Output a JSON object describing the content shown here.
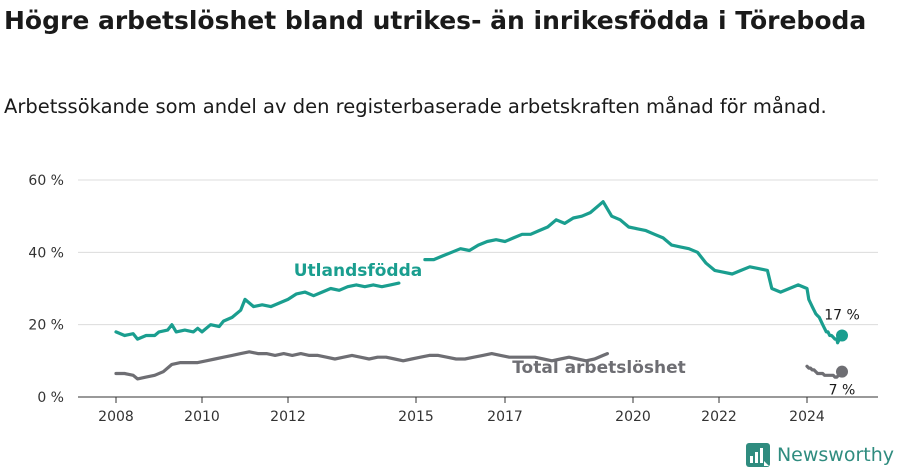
{
  "title": "Högre arbetslöshet bland utrikes- än inrikesfödda i Töreboda",
  "subtitle": "Arbetssökande som andel av den registerbaserade arbetskraften månad för månad.",
  "brand": {
    "name": "Newsworthy"
  },
  "colors": {
    "foreign": "#1a9e8f",
    "total": "#6e6e73",
    "grid": "#dcdcdc",
    "axis": "#333333"
  },
  "chart_data": {
    "type": "line",
    "title": "Högre arbetslöshet bland utrikes- än inrikesfödda i Töreboda",
    "ylabel": "",
    "xlabel": "",
    "ylim": [
      0,
      60
    ],
    "y_ticks": [
      0,
      20,
      40,
      60
    ],
    "y_tick_labels": [
      "0 %",
      "20 %",
      "40 %",
      "60 %"
    ],
    "x_range": [
      2007.5,
      2025.5
    ],
    "x_ticks": [
      2008,
      2010,
      2012,
      2015,
      2017,
      2020,
      2022,
      2024
    ],
    "x_tick_labels": [
      "2008",
      "2010",
      "2012",
      "2015",
      "2017",
      "2020",
      "2022",
      "2024"
    ],
    "grid": true,
    "series": [
      {
        "name": "Utlandsfödda",
        "color": "#1a9e8f",
        "end_label": "17 %",
        "points": [
          [
            2008.0,
            18
          ],
          [
            2008.2,
            17
          ],
          [
            2008.4,
            17.5
          ],
          [
            2008.5,
            16
          ],
          [
            2008.7,
            17
          ],
          [
            2008.9,
            17
          ],
          [
            2009.0,
            18
          ],
          [
            2009.2,
            18.5
          ],
          [
            2009.3,
            20
          ],
          [
            2009.4,
            18
          ],
          [
            2009.6,
            18.5
          ],
          [
            2009.8,
            18
          ],
          [
            2009.9,
            19
          ],
          [
            2010.0,
            18
          ],
          [
            2010.2,
            20
          ],
          [
            2010.4,
            19.5
          ],
          [
            2010.5,
            21
          ],
          [
            2010.7,
            22
          ],
          [
            2010.9,
            24
          ],
          [
            2011.0,
            27
          ],
          [
            2011.2,
            25
          ],
          [
            2011.4,
            25.5
          ],
          [
            2011.6,
            25
          ],
          [
            2011.8,
            26
          ],
          [
            2012.0,
            27
          ],
          [
            2012.2,
            28.5
          ],
          [
            2012.4,
            29
          ],
          [
            2012.6,
            28
          ],
          [
            2012.8,
            29
          ],
          [
            2013.0,
            30
          ],
          [
            2013.2,
            29.5
          ],
          [
            2013.4,
            30.5
          ],
          [
            2013.6,
            31
          ],
          [
            2013.8,
            30.5
          ],
          [
            2014.0,
            31
          ],
          [
            2014.2,
            30.5
          ],
          [
            2014.4,
            31
          ],
          [
            2014.6,
            31.5
          ],
          null,
          [
            2015.2,
            38
          ],
          [
            2015.4,
            38
          ],
          [
            2015.6,
            39
          ],
          [
            2015.8,
            40
          ],
          [
            2016.0,
            41
          ],
          [
            2016.2,
            40.5
          ],
          [
            2016.4,
            42
          ],
          [
            2016.6,
            43
          ],
          [
            2016.8,
            43.5
          ],
          [
            2017.0,
            43
          ],
          [
            2017.2,
            44
          ],
          [
            2017.4,
            45
          ],
          [
            2017.6,
            45
          ],
          [
            2017.8,
            46
          ],
          [
            2018.0,
            47
          ],
          [
            2018.2,
            49
          ],
          [
            2018.4,
            48
          ],
          [
            2018.6,
            49.5
          ],
          [
            2018.8,
            50
          ],
          [
            2019.0,
            51
          ],
          [
            2019.2,
            53
          ],
          [
            2019.3,
            54
          ],
          [
            2019.5,
            50
          ],
          [
            2019.7,
            49
          ],
          [
            2019.9,
            47
          ],
          [
            2020.1,
            46.5
          ],
          [
            2020.3,
            46
          ],
          [
            2020.5,
            45
          ],
          [
            2020.7,
            44
          ],
          [
            2020.9,
            42
          ],
          [
            2021.1,
            41.5
          ],
          [
            2021.3,
            41
          ],
          [
            2021.5,
            40
          ],
          [
            2021.7,
            37
          ],
          [
            2021.9,
            35
          ],
          [
            2022.1,
            34.5
          ],
          [
            2022.3,
            34
          ],
          [
            2022.5,
            35
          ],
          [
            2022.7,
            36
          ],
          [
            2022.9,
            35.5
          ],
          [
            2023.1,
            35
          ],
          [
            2023.2,
            30
          ],
          [
            2023.4,
            29
          ],
          [
            2023.6,
            30
          ],
          [
            2023.8,
            31
          ],
          [
            2024.0,
            30
          ],
          [
            2024.2,
            27
          ],
          [
            2024.4,
            26
          ],
          [
            2024.6,
            25
          ],
          [
            2024.8,
            24
          ],
          [
            2025.0,
            23
          ],
          [
            2025.2,
            22.5
          ],
          [
            2025.4,
            22
          ],
          [
            2025.6,
            21
          ],
          [
            2025.8,
            20
          ],
          [
            2026.0,
            19
          ],
          [
            2026.2,
            18
          ],
          [
            2026.4,
            18
          ],
          [
            2026.6,
            17
          ],
          [
            2026.8,
            17
          ],
          [
            2027.0,
            16.5
          ],
          [
            2027.2,
            16
          ],
          [
            2027.4,
            16
          ],
          [
            2027.5,
            15
          ],
          [
            2027.7,
            16
          ],
          [
            2027.9,
            16
          ],
          [
            2028.0,
            17
          ]
        ]
      },
      {
        "name": "Total arbetslöshet",
        "color": "#6e6e73",
        "end_label": "7 %",
        "points": [
          [
            2008.0,
            6.5
          ],
          [
            2008.2,
            6.5
          ],
          [
            2008.4,
            6
          ],
          [
            2008.5,
            5
          ],
          [
            2008.7,
            5.5
          ],
          [
            2008.9,
            6
          ],
          [
            2009.1,
            7
          ],
          [
            2009.3,
            9
          ],
          [
            2009.5,
            9.5
          ],
          [
            2009.7,
            9.5
          ],
          [
            2009.9,
            9.5
          ],
          [
            2010.1,
            10
          ],
          [
            2010.3,
            10.5
          ],
          [
            2010.5,
            11
          ],
          [
            2010.7,
            11.5
          ],
          [
            2010.9,
            12
          ],
          [
            2011.1,
            12.5
          ],
          [
            2011.3,
            12
          ],
          [
            2011.5,
            12
          ],
          [
            2011.7,
            11.5
          ],
          [
            2011.9,
            12
          ],
          [
            2012.1,
            11.5
          ],
          [
            2012.3,
            12
          ],
          [
            2012.5,
            11.5
          ],
          [
            2012.7,
            11.5
          ],
          [
            2012.9,
            11
          ],
          [
            2013.1,
            10.5
          ],
          [
            2013.3,
            11
          ],
          [
            2013.5,
            11.5
          ],
          [
            2013.7,
            11
          ],
          [
            2013.9,
            10.5
          ],
          [
            2014.1,
            11
          ],
          [
            2014.3,
            11
          ],
          [
            2014.5,
            10.5
          ],
          [
            2014.7,
            10
          ],
          [
            2014.9,
            10.5
          ],
          [
            2015.1,
            11
          ],
          [
            2015.3,
            11.5
          ],
          [
            2015.5,
            11.5
          ],
          [
            2015.7,
            11
          ],
          [
            2015.9,
            10.5
          ],
          [
            2016.1,
            10.5
          ],
          [
            2016.3,
            11
          ],
          [
            2016.5,
            11.5
          ],
          [
            2016.7,
            12
          ],
          [
            2016.9,
            11.5
          ],
          [
            2017.1,
            11
          ],
          [
            2017.3,
            11
          ],
          [
            2017.5,
            11
          ],
          [
            2017.7,
            11
          ],
          [
            2017.9,
            10.5
          ],
          [
            2018.1,
            10
          ],
          [
            2018.3,
            10.5
          ],
          [
            2018.5,
            11
          ],
          [
            2018.7,
            10.5
          ],
          [
            2018.9,
            10
          ],
          [
            2019.1,
            10.5
          ],
          [
            2019.3,
            11.5
          ],
          [
            2019.4,
            12
          ],
          null,
          [
            2024.0,
            8.5
          ],
          [
            2024.2,
            8
          ],
          [
            2024.4,
            8
          ],
          [
            2024.6,
            7.5
          ],
          [
            2024.8,
            7.5
          ],
          [
            2025.0,
            7
          ],
          [
            2025.2,
            6.5
          ],
          [
            2025.4,
            6.5
          ],
          [
            2025.6,
            6.5
          ],
          [
            2025.8,
            6.5
          ],
          [
            2026.0,
            6
          ],
          [
            2026.2,
            6
          ],
          [
            2026.4,
            6
          ],
          [
            2026.6,
            6
          ],
          [
            2026.8,
            6
          ],
          [
            2027.0,
            6
          ],
          [
            2027.2,
            5.5
          ],
          [
            2027.4,
            5.5
          ],
          [
            2027.6,
            6
          ],
          [
            2027.8,
            6.5
          ],
          [
            2028.0,
            7
          ]
        ]
      }
    ]
  }
}
